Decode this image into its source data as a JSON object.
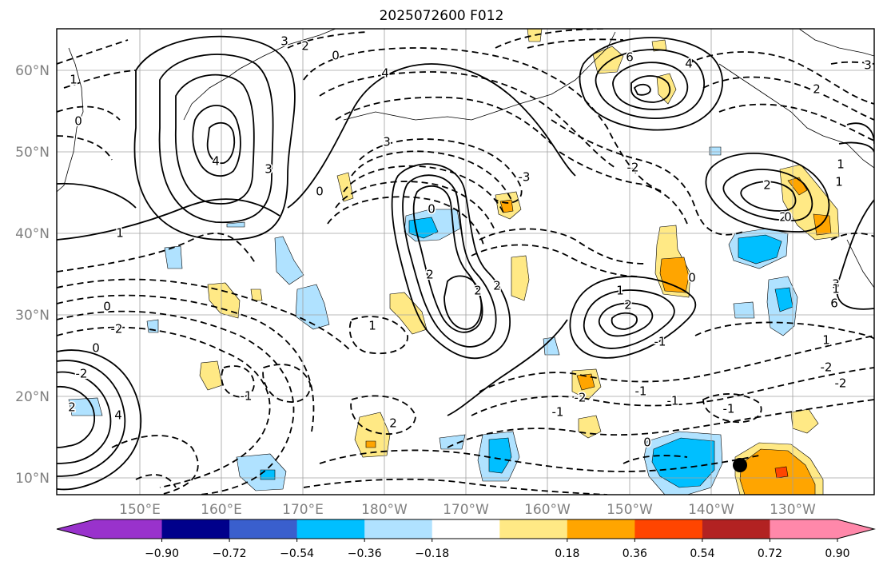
{
  "title": "2025072600 F012",
  "map": {
    "lat_ticks": [
      "10°N",
      "20°N",
      "30°N",
      "40°N",
      "50°N",
      "60°N"
    ],
    "lon_ticks": [
      "150°E",
      "160°E",
      "170°E",
      "180°W",
      "170°W",
      "160°W",
      "150°W",
      "140°W",
      "130°W"
    ],
    "contour_labels": [
      "3",
      "2",
      "0",
      "4",
      "6",
      "4",
      "3",
      "1",
      "2",
      "0",
      "0",
      "1",
      "4",
      "3",
      "3",
      "-3",
      "0",
      "2",
      "2",
      "1",
      "2",
      "2",
      "0",
      "-2",
      "0",
      "0",
      "-2",
      "2",
      "4",
      "6",
      "3",
      "1",
      "2",
      "-1",
      "-2",
      "-1",
      "-1",
      "-1",
      "-1",
      "-2",
      "-2",
      "-2",
      "-1",
      "1",
      "0",
      "1",
      "1",
      "2",
      "1",
      "2",
      "0"
    ]
  },
  "colorbar": {
    "labels": [
      "−0.90",
      "−0.72",
      "−0.54",
      "−0.36",
      "−0.18",
      "0.18",
      "0.36",
      "0.54",
      "0.72",
      "0.90"
    ],
    "colors": [
      "#9932cc",
      "#00008b",
      "#3a5fcd",
      "#00bfff",
      "#b0e2ff",
      "#ffffff",
      "#ffe985",
      "#ffa500",
      "#ff4500",
      "#b22222",
      "#ff88aa"
    ]
  },
  "colors": {
    "contour": "#000000",
    "grid": "#a0a0a0",
    "coast": "#000000",
    "marker": "#000000"
  }
}
